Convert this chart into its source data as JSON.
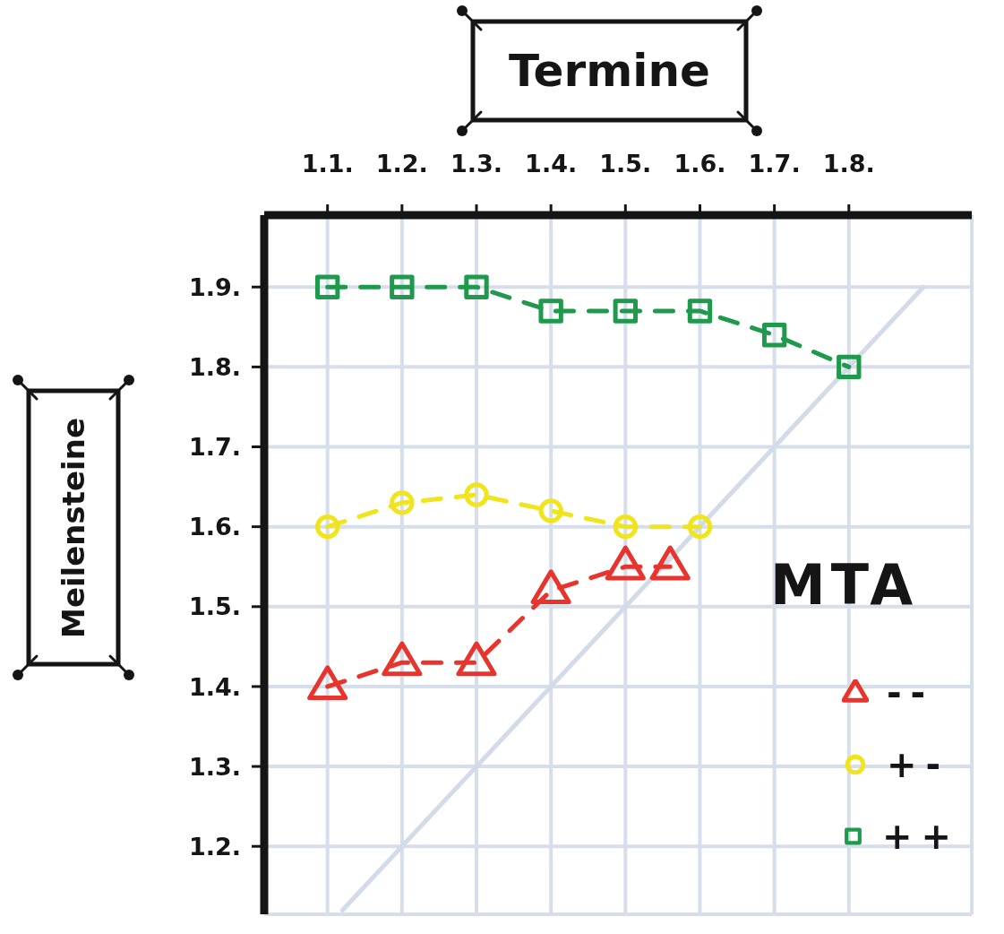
{
  "chart_data": {
    "type": "line",
    "xlabel": "Termine",
    "ylabel": "Meilensteine",
    "legend_title": "MTA",
    "xlim": [
      1.015,
      1.965
    ],
    "xticks": [
      {
        "value": 1.1,
        "label": "1.1."
      },
      {
        "value": 1.2,
        "label": "1.2."
      },
      {
        "value": 1.3,
        "label": "1.3."
      },
      {
        "value": 1.4,
        "label": "1.4."
      },
      {
        "value": 1.5,
        "label": "1.5."
      },
      {
        "value": 1.6,
        "label": "1.6."
      },
      {
        "value": 1.7,
        "label": "1.7."
      },
      {
        "value": 1.8,
        "label": "1.8."
      }
    ],
    "ylim": [
      1.115,
      1.99
    ],
    "yticks": [
      {
        "value": 1.2,
        "label": "1.2."
      },
      {
        "value": 1.3,
        "label": "1.3."
      },
      {
        "value": 1.4,
        "label": "1.4."
      },
      {
        "value": 1.5,
        "label": "1.5."
      },
      {
        "value": 1.6,
        "label": "1.6."
      },
      {
        "value": 1.7,
        "label": "1.7."
      },
      {
        "value": 1.8,
        "label": "1.8."
      },
      {
        "value": 1.9,
        "label": "1.9."
      }
    ],
    "grid": true,
    "legend": "bottom right",
    "line_style": "dashed",
    "series": [
      {
        "color": "#d3dae8",
        "marker": "none",
        "line_style": "solid",
        "x": [
          1.12,
          1.9
        ],
        "values": [
          1.12,
          1.9
        ]
      },
      {
        "name": "--",
        "color": "#e8342c",
        "marker": "triangle",
        "x": [
          1.1,
          1.2,
          1.3,
          1.4,
          1.5,
          1.56
        ],
        "values": [
          1.4,
          1.43,
          1.43,
          1.52,
          1.55,
          1.55
        ]
      },
      {
        "name": "+-",
        "color": "#f0e41c",
        "marker": "circle",
        "x": [
          1.1,
          1.2,
          1.3,
          1.4,
          1.5,
          1.6
        ],
        "values": [
          1.6,
          1.63,
          1.64,
          1.62,
          1.6,
          1.6
        ]
      },
      {
        "name": "++",
        "color": "#1f9a4c",
        "marker": "square",
        "x": [
          1.1,
          1.2,
          1.3,
          1.4,
          1.5,
          1.6,
          1.7,
          1.8
        ],
        "values": [
          1.9,
          1.9,
          1.9,
          1.87,
          1.87,
          1.87,
          1.84,
          1.8
        ]
      }
    ]
  }
}
